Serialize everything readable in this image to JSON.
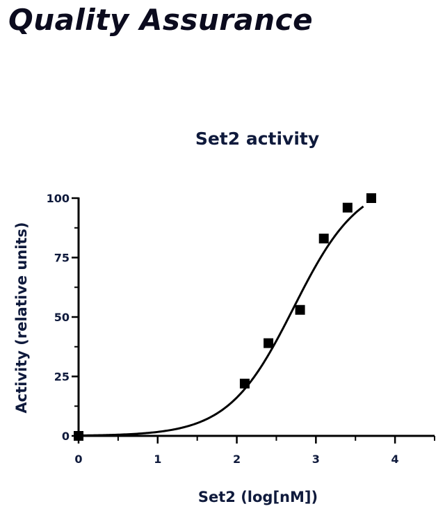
{
  "page": {
    "title": "Quality Assurance"
  },
  "chart_data": {
    "type": "scatter",
    "title": "Set2 activity",
    "xlabel": "Set2 (log[nM])",
    "ylabel": "Activity (relative units)",
    "xlim": [
      0,
      4.5
    ],
    "ylim": [
      0,
      100
    ],
    "xticks": [
      0,
      1,
      2,
      3,
      4
    ],
    "xtick_labels": [
      "0",
      "1",
      "2",
      "3",
      "4"
    ],
    "yticks": [
      0,
      25,
      50,
      75,
      100
    ],
    "ytick_labels": [
      "0",
      "25",
      "50",
      "75",
      "100"
    ],
    "grid": false,
    "series": [
      {
        "marker": "square",
        "color": "#000000",
        "x": [
          0.0,
          2.1,
          2.4,
          2.8,
          3.1,
          3.4,
          3.7
        ],
        "y": [
          0,
          22,
          39,
          53,
          83,
          96,
          100
        ]
      }
    ],
    "fit_curve": {
      "type": "sigmoidal dose-response",
      "color": "#000000",
      "bottom": 0,
      "top": 108,
      "log_ec50": 2.72,
      "hill_slope": 1.05,
      "x_range": [
        0,
        3.6
      ]
    }
  }
}
